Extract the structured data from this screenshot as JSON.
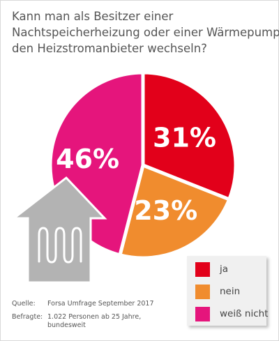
{
  "chart_data": {
    "type": "pie",
    "title": "Kann man als Besitzer einer Nachtspeicherheizung oder einer Wärmepumpe den Heizstromanbieter wechseln?",
    "title_lines": [
      "Kann man als Besitzer einer",
      "Nachtspeicherheizung oder einer Wärmepumpe",
      "den Heizstromanbieter wechseln?"
    ],
    "categories": [
      "ja",
      "nein",
      "weiß nicht"
    ],
    "values": [
      31,
      23,
      46
    ],
    "data_labels": [
      "31%",
      "23%",
      "46%"
    ],
    "colors": [
      "#e2001a",
      "#f08c2e",
      "#e5157c"
    ],
    "legend_position": "bottom-right"
  },
  "source": {
    "quelle_label": "Quelle:",
    "quelle_value": "Forsa Umfrage September 2017",
    "befragte_label": "Befragte:",
    "befragte_value_line1": "1.022 Personen ab 25 Jahre,",
    "befragte_value_line2": "bundesweit"
  },
  "icons": {
    "house": "house-heater-icon",
    "house_fill": "#b3b3b3"
  }
}
